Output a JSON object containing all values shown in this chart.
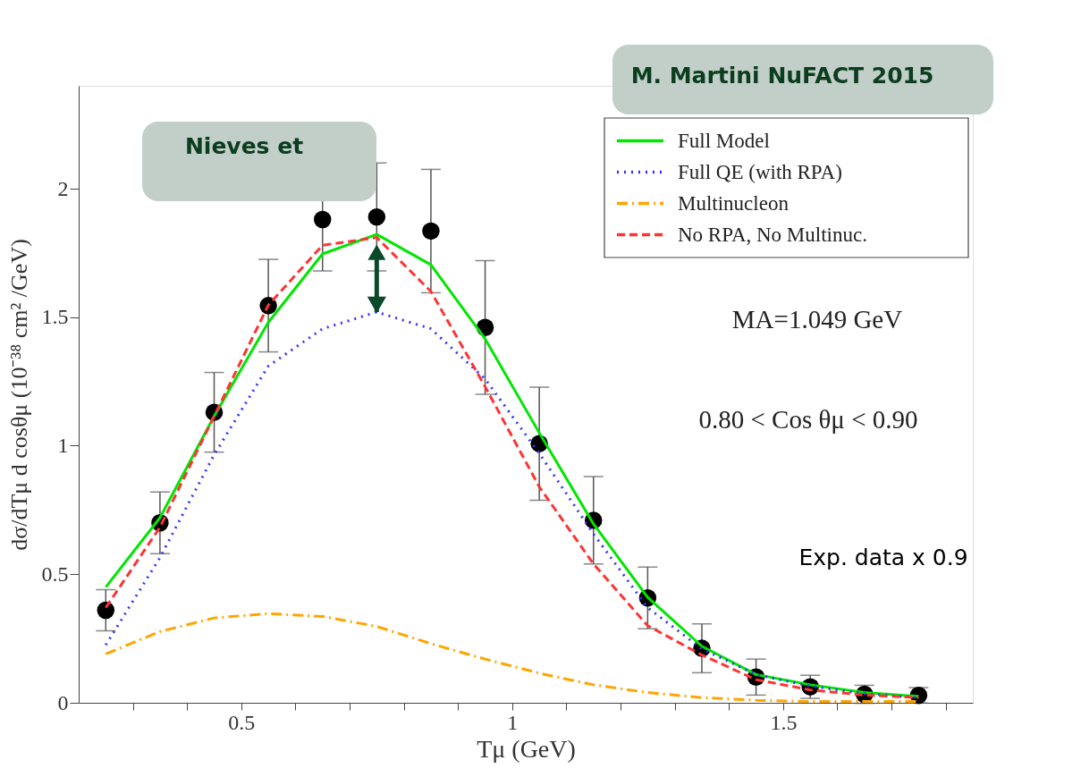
{
  "chart_data": {
    "type": "line",
    "xlabel": "Tμ (GeV)",
    "ylabel": "dσ/dTμ d cosθμ (10⁻³⁸ cm² /GeV)",
    "x": [
      0.25,
      0.35,
      0.45,
      0.55,
      0.65,
      0.75,
      0.85,
      0.95,
      1.05,
      1.15,
      1.25,
      1.35,
      1.45,
      1.55,
      1.65,
      1.75
    ],
    "series": [
      {
        "name": "Full Model",
        "color": "#00e600",
        "line_style": "solid",
        "values": [
          0.45,
          0.72,
          1.115,
          1.48,
          1.746,
          1.822,
          1.704,
          1.416,
          1.05,
          0.696,
          0.41,
          0.22,
          0.11,
          0.07,
          0.04,
          0.025
        ]
      },
      {
        "name": "Full QE (with RPA)",
        "color": "#3333ff",
        "line_style": "dotted",
        "values": [
          0.225,
          0.565,
          0.965,
          1.31,
          1.455,
          1.52,
          1.455,
          1.26,
          0.97,
          0.657,
          0.37,
          0.21,
          0.11,
          0.065,
          0.035,
          0.02
        ]
      },
      {
        "name": "Multinucleon",
        "color": "#ffa500",
        "line_style": "dashdot",
        "values": [
          0.19,
          0.277,
          0.33,
          0.347,
          0.336,
          0.297,
          0.23,
          0.17,
          0.115,
          0.07,
          0.04,
          0.02,
          0.01,
          0.005,
          0.005,
          0.005
        ]
      },
      {
        "name": "No RPA, No Multinuc.",
        "color": "#ff3333",
        "line_style": "dashed",
        "values": [
          0.37,
          0.683,
          1.115,
          1.547,
          1.78,
          1.81,
          1.6,
          1.23,
          0.84,
          0.54,
          0.3,
          0.186,
          0.09,
          0.05,
          0.03,
          0.02
        ]
      },
      {
        "type": "scatter",
        "color": "#000000",
        "marker": "circle",
        "values": [
          0.36,
          0.7,
          1.13,
          1.545,
          1.88,
          1.89,
          1.835,
          1.46,
          1.008,
          0.71,
          0.408,
          0.212,
          0.1,
          0.062,
          0.033,
          0.029
        ],
        "errors": [
          0.08,
          0.12,
          0.155,
          0.18,
          0.2,
          0.21,
          0.24,
          0.26,
          0.22,
          0.17,
          0.12,
          0.095,
          0.07,
          0.045,
          0.035,
          0.03
        ]
      }
    ],
    "xlim": [
      0.2,
      1.85
    ],
    "ylim": [
      0,
      2.4
    ],
    "xticks": [
      {
        "value": 0.3,
        "label": null
      },
      {
        "value": 0.4,
        "label": null
      },
      0.5,
      {
        "value": 0.6,
        "label": null
      },
      {
        "value": 0.7,
        "label": null
      },
      {
        "value": 0.8,
        "label": null
      },
      {
        "value": 0.9,
        "label": null
      },
      1,
      {
        "value": 1.1,
        "label": null
      },
      {
        "value": 1.2,
        "label": null
      },
      {
        "value": 1.3,
        "label": null
      },
      {
        "value": 1.4,
        "label": null
      },
      1.5,
      {
        "value": 1.6,
        "label": null
      },
      {
        "value": 1.7,
        "label": null
      },
      {
        "value": 1.8,
        "label": null
      }
    ],
    "yticks": [
      0,
      0.5,
      1,
      1.5,
      2
    ],
    "grid": false,
    "legend": "top right",
    "annotations": [
      "M. Martini NuFACT 2015",
      "Nieves et",
      "MA=1.049 GeV",
      "0.80 < Cos θμ < 0.90",
      "Exp. data x 0.9"
    ]
  }
}
